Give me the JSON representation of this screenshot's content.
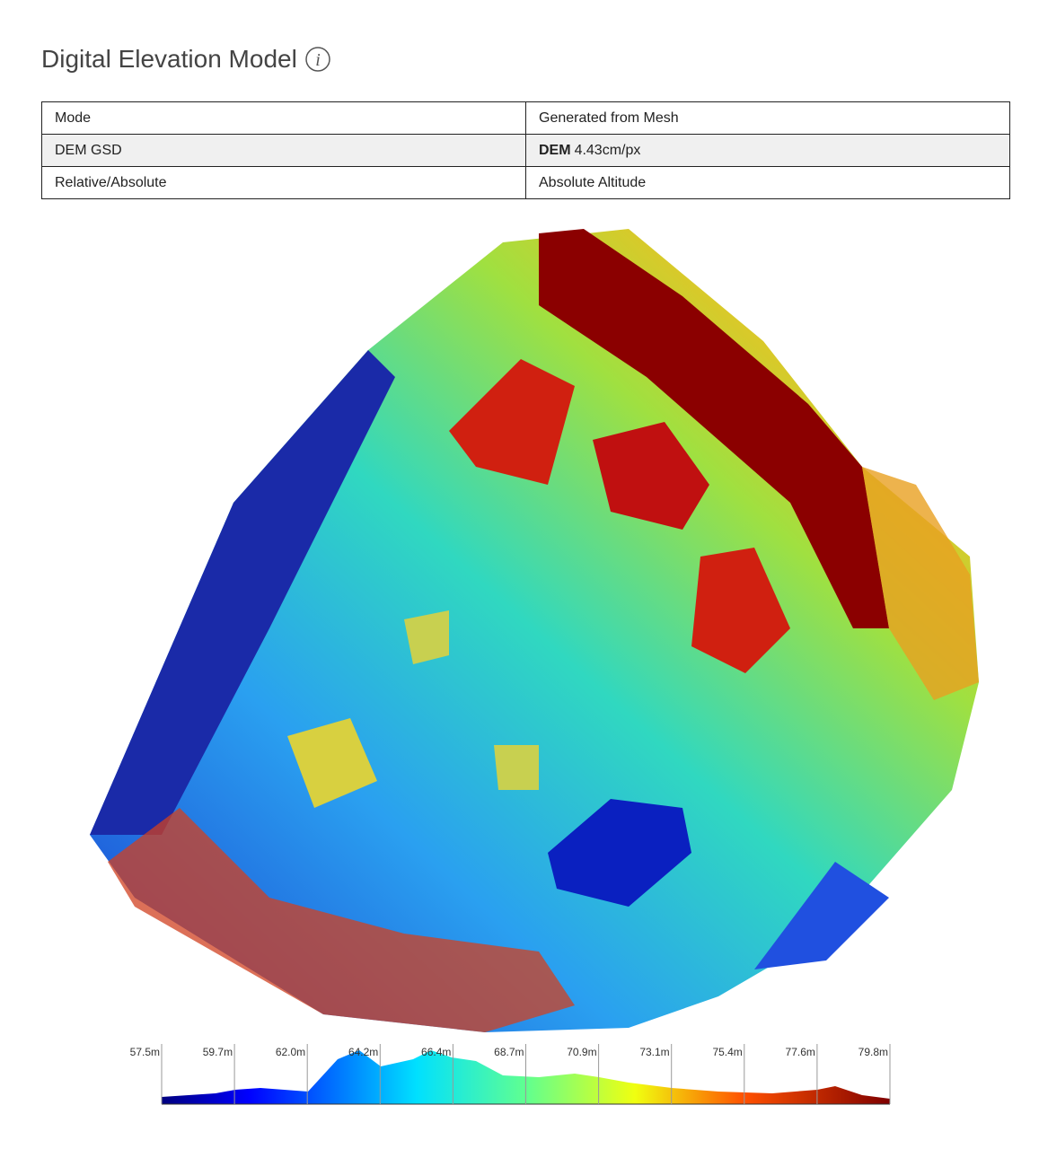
{
  "header": {
    "title": "Digital Elevation Model"
  },
  "table": {
    "rows": [
      [
        "Mode",
        "Generated from Mesh"
      ],
      [
        "DEM GSD",
        {
          "bold": "DEM",
          "text": "4.43cm/px"
        }
      ],
      [
        "Relative/Absolute",
        "Absolute Altitude"
      ]
    ]
  },
  "legend": {
    "ticks": [
      "57.5m",
      "59.7m",
      "62.0m",
      "64.2m",
      "66.4m",
      "68.7m",
      "70.9m",
      "73.1m",
      "75.4m",
      "77.6m",
      "79.8m"
    ]
  }
}
